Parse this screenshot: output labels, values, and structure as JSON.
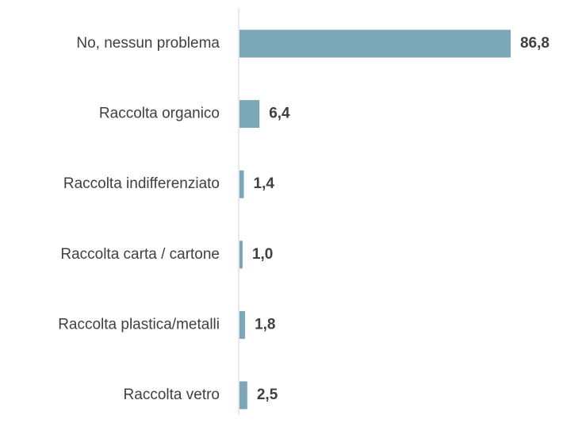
{
  "chart_data": {
    "type": "barh",
    "categories": [
      "No, nessun problema",
      "Raccolta organico",
      "Raccolta indifferenziato",
      "Raccolta carta / cartone",
      "Raccolta plastica/metalli",
      "Raccolta vetro"
    ],
    "values": [
      86.8,
      6.4,
      1.4,
      1.0,
      1.8,
      2.5
    ],
    "value_labels": [
      "86,8",
      "6,4",
      "1,4",
      "1,0",
      "1,8",
      "2,5"
    ],
    "color": "#7ba7b8"
  }
}
